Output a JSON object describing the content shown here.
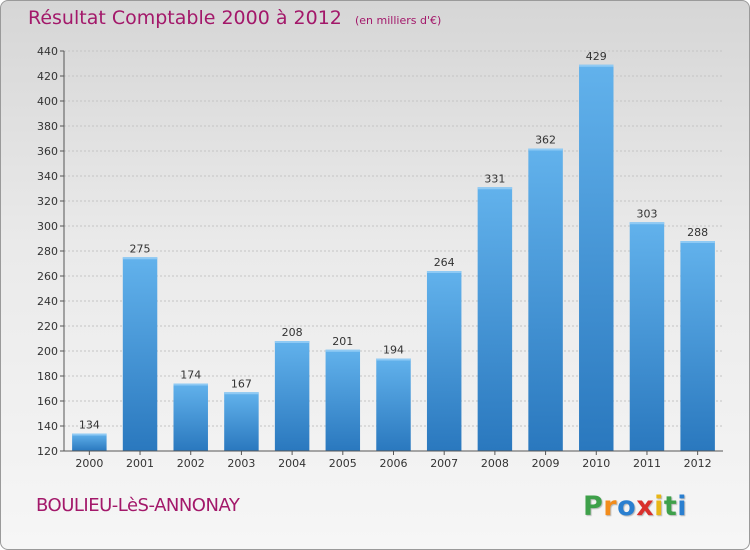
{
  "chart_data": {
    "type": "bar",
    "title": "Résultat Comptable 2000 à 2012",
    "subtitle": "(en milliers d'€)",
    "categories": [
      "2000",
      "2001",
      "2002",
      "2003",
      "2004",
      "2005",
      "2006",
      "2007",
      "2008",
      "2009",
      "2010",
      "2011",
      "2012"
    ],
    "values": [
      134,
      275,
      174,
      167,
      208,
      201,
      194,
      264,
      331,
      362,
      429,
      303,
      288
    ],
    "ylim": [
      120,
      440
    ],
    "yticks": [
      120,
      140,
      160,
      180,
      200,
      220,
      240,
      260,
      280,
      300,
      320,
      340,
      360,
      380,
      400,
      420,
      440
    ],
    "grid": true,
    "xlabel": "",
    "ylabel": "",
    "bar_color": "#3a8ed6"
  },
  "footer": {
    "commune": "BOULIEU-LèS-ANNONAY",
    "logo_letters": [
      "P",
      "r",
      "o",
      "x",
      "i",
      "t",
      "i"
    ],
    "logo_colors": [
      "#3ea04a",
      "#f28c1c",
      "#2a7fd0",
      "#d9302c",
      "#e8b616",
      "#3ea04a",
      "#2a7fd0"
    ]
  }
}
